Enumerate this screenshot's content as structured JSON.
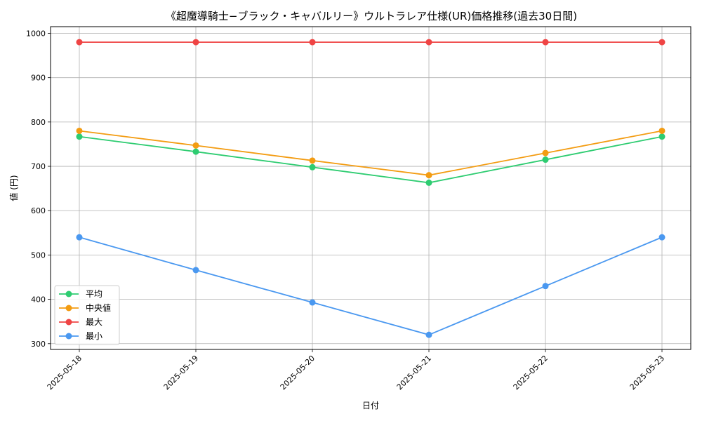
{
  "chart_data": {
    "type": "line",
    "title": "《超魔導騎士−ブラック・キャバルリー》ウルトラレア仕様(UR)価格推移(過去30日間)",
    "xlabel": "日付",
    "ylabel": "値 (円)",
    "categories": [
      "2025-05-18",
      "2025-05-19",
      "2025-05-20",
      "2025-05-21",
      "2025-05-22",
      "2025-05-23"
    ],
    "ylim": [
      287,
      1015
    ],
    "yticks": [
      300,
      400,
      500,
      600,
      700,
      800,
      900,
      1000
    ],
    "grid": true,
    "legend_position": "lower-left",
    "series": [
      {
        "name": "平均",
        "color": "#2ecc71",
        "values": [
          767,
          733,
          698,
          663,
          715,
          767
        ]
      },
      {
        "name": "中央値",
        "color": "#f39c12",
        "values": [
          780,
          747,
          713,
          680,
          730,
          780
        ]
      },
      {
        "name": "最大",
        "color": "#ef4444",
        "values": [
          980,
          980,
          980,
          980,
          980,
          980
        ]
      },
      {
        "name": "最小",
        "color": "#4a98f0",
        "values": [
          540,
          466,
          393,
          320,
          430,
          540
        ]
      }
    ]
  }
}
